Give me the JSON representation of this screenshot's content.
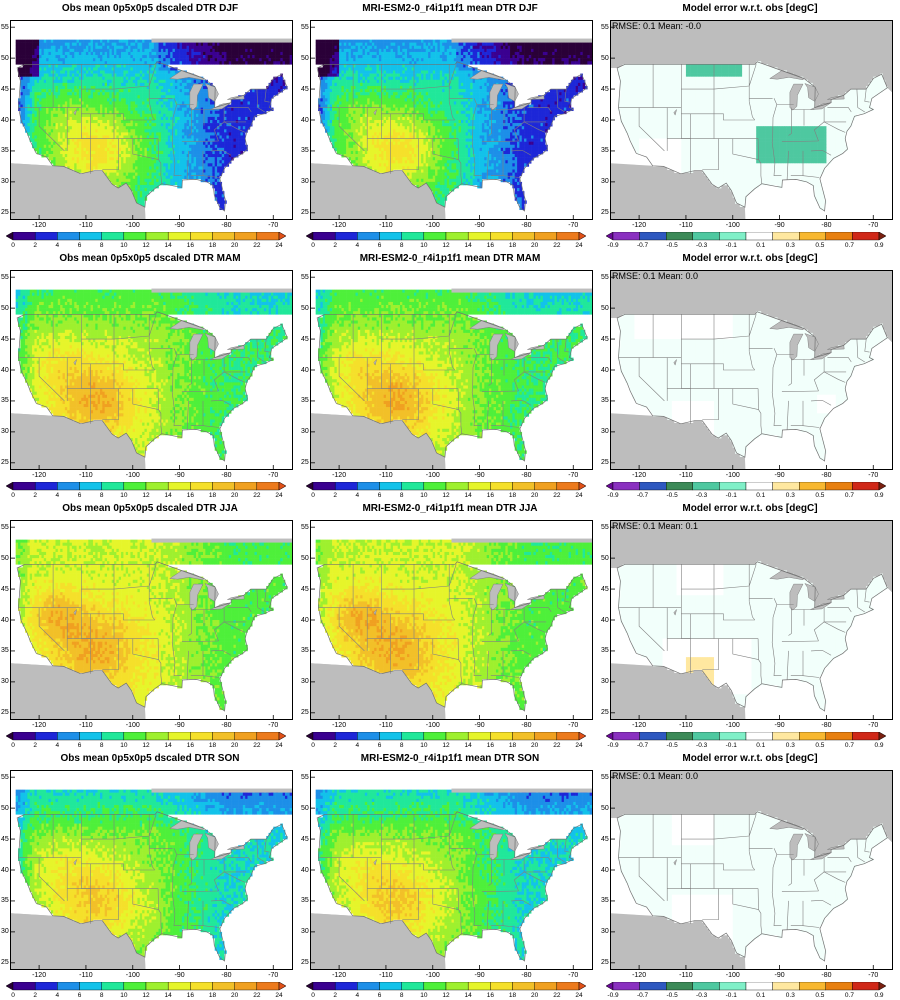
{
  "panels": [
    {
      "title": "Obs mean 0p5x0p5 dscaled DTR DJF",
      "kind": "abs",
      "season": "DJF"
    },
    {
      "title": "MRI-ESM2-0_r4i1p1f1 mean DTR DJF",
      "kind": "abs",
      "season": "DJF"
    },
    {
      "title": "Model error w.r.t. obs [degC]",
      "kind": "err",
      "season": "DJF",
      "stat": "RMSE: 0.1  Mean: -0.0"
    },
    {
      "title": "Obs mean 0p5x0p5 dscaled DTR MAM",
      "kind": "abs",
      "season": "MAM"
    },
    {
      "title": "MRI-ESM2-0_r4i1p1f1 mean DTR MAM",
      "kind": "abs",
      "season": "MAM"
    },
    {
      "title": "Model error w.r.t. obs [degC]",
      "kind": "err",
      "season": "MAM",
      "stat": "RMSE: 0.1  Mean: 0.0"
    },
    {
      "title": "Obs mean 0p5x0p5 dscaled DTR JJA",
      "kind": "abs",
      "season": "JJA"
    },
    {
      "title": "MRI-ESM2-0_r4i1p1f1 mean DTR JJA",
      "kind": "abs",
      "season": "JJA"
    },
    {
      "title": "Model error w.r.t. obs [degC]",
      "kind": "err",
      "season": "JJA",
      "stat": "RMSE: 0.1  Mean: 0.1"
    },
    {
      "title": "Obs mean 0p5x0p5 dscaled DTR SON",
      "kind": "abs",
      "season": "SON"
    },
    {
      "title": "MRI-ESM2-0_r4i1p1f1 mean DTR SON",
      "kind": "abs",
      "season": "SON"
    },
    {
      "title": "Model error w.r.t. obs [degC]",
      "kind": "err",
      "season": "SON",
      "stat": "RMSE: 0.1  Mean: 0.0"
    }
  ],
  "lat_ticks": [
    "55",
    "50",
    "45",
    "40",
    "35",
    "30",
    "25"
  ],
  "lon_ticks": [
    "-120",
    "-110",
    "-100",
    "-90",
    "-80",
    "-70"
  ],
  "colorbars": {
    "abs": {
      "labels": [
        "0",
        "2",
        "4",
        "6",
        "8",
        "10",
        "12",
        "14",
        "16",
        "18",
        "20",
        "22",
        "24"
      ],
      "colors": [
        "#2a0038",
        "#3a0090",
        "#1d27d8",
        "#1d8fe8",
        "#12c2ea",
        "#20e89a",
        "#4ef03a",
        "#9ef02e",
        "#e6f52a",
        "#f5e02a",
        "#f2c028",
        "#f0a020",
        "#ec7a1c",
        "#e05018"
      ]
    },
    "err": {
      "labels": [
        "-0.9",
        "-0.7",
        "-0.5",
        "-0.3",
        "-0.1",
        "0.1",
        "0.3",
        "0.5",
        "0.7",
        "0.9"
      ],
      "colors": [
        "#6a0898",
        "#8a30c0",
        "#2e58c0",
        "#3c8a58",
        "#4ec8a0",
        "#80f0c8",
        "#ffffff",
        "#ffe8a0",
        "#f8b830",
        "#e88010",
        "#d02818",
        "#7a2010"
      ]
    }
  },
  "colors": {
    "land_missing": "#bdbdbd",
    "border": "#808080"
  }
}
